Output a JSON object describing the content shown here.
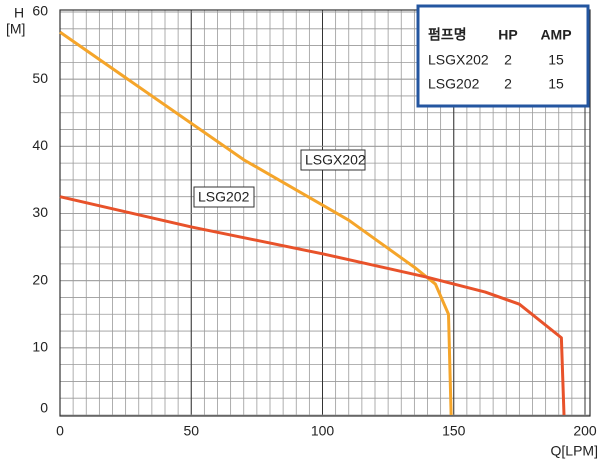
{
  "chart_data": {
    "type": "line",
    "ylabel": [
      "H",
      "[M]"
    ],
    "xlabel": "Q[LPM]",
    "xlim": [
      0,
      200
    ],
    "ylim": [
      0,
      60
    ],
    "xticks": [
      0,
      50,
      100,
      150,
      200
    ],
    "yticks": [
      0,
      10,
      20,
      30,
      40,
      50,
      60
    ],
    "xminor_step": 5,
    "yminor_step": 2.5,
    "grid": true,
    "series": [
      {
        "name": "LSGX202",
        "color": "#f5a52a",
        "x": [
          0,
          70,
          110,
          135,
          143,
          148,
          149
        ],
        "values": [
          57,
          38,
          29,
          22,
          19.5,
          15,
          0
        ]
      },
      {
        "name": "LSG202",
        "color": "#e8522a",
        "x": [
          0,
          50,
          100,
          140,
          162,
          175,
          191,
          192
        ],
        "values": [
          32.5,
          28,
          24,
          20.5,
          18.3,
          16.5,
          11.5,
          0
        ]
      }
    ],
    "table": {
      "columns": [
        "펌프명",
        "HP",
        "AMP"
      ],
      "rows": [
        [
          "LSGX202",
          2,
          15
        ],
        [
          "LSG202",
          2,
          15
        ]
      ]
    }
  }
}
